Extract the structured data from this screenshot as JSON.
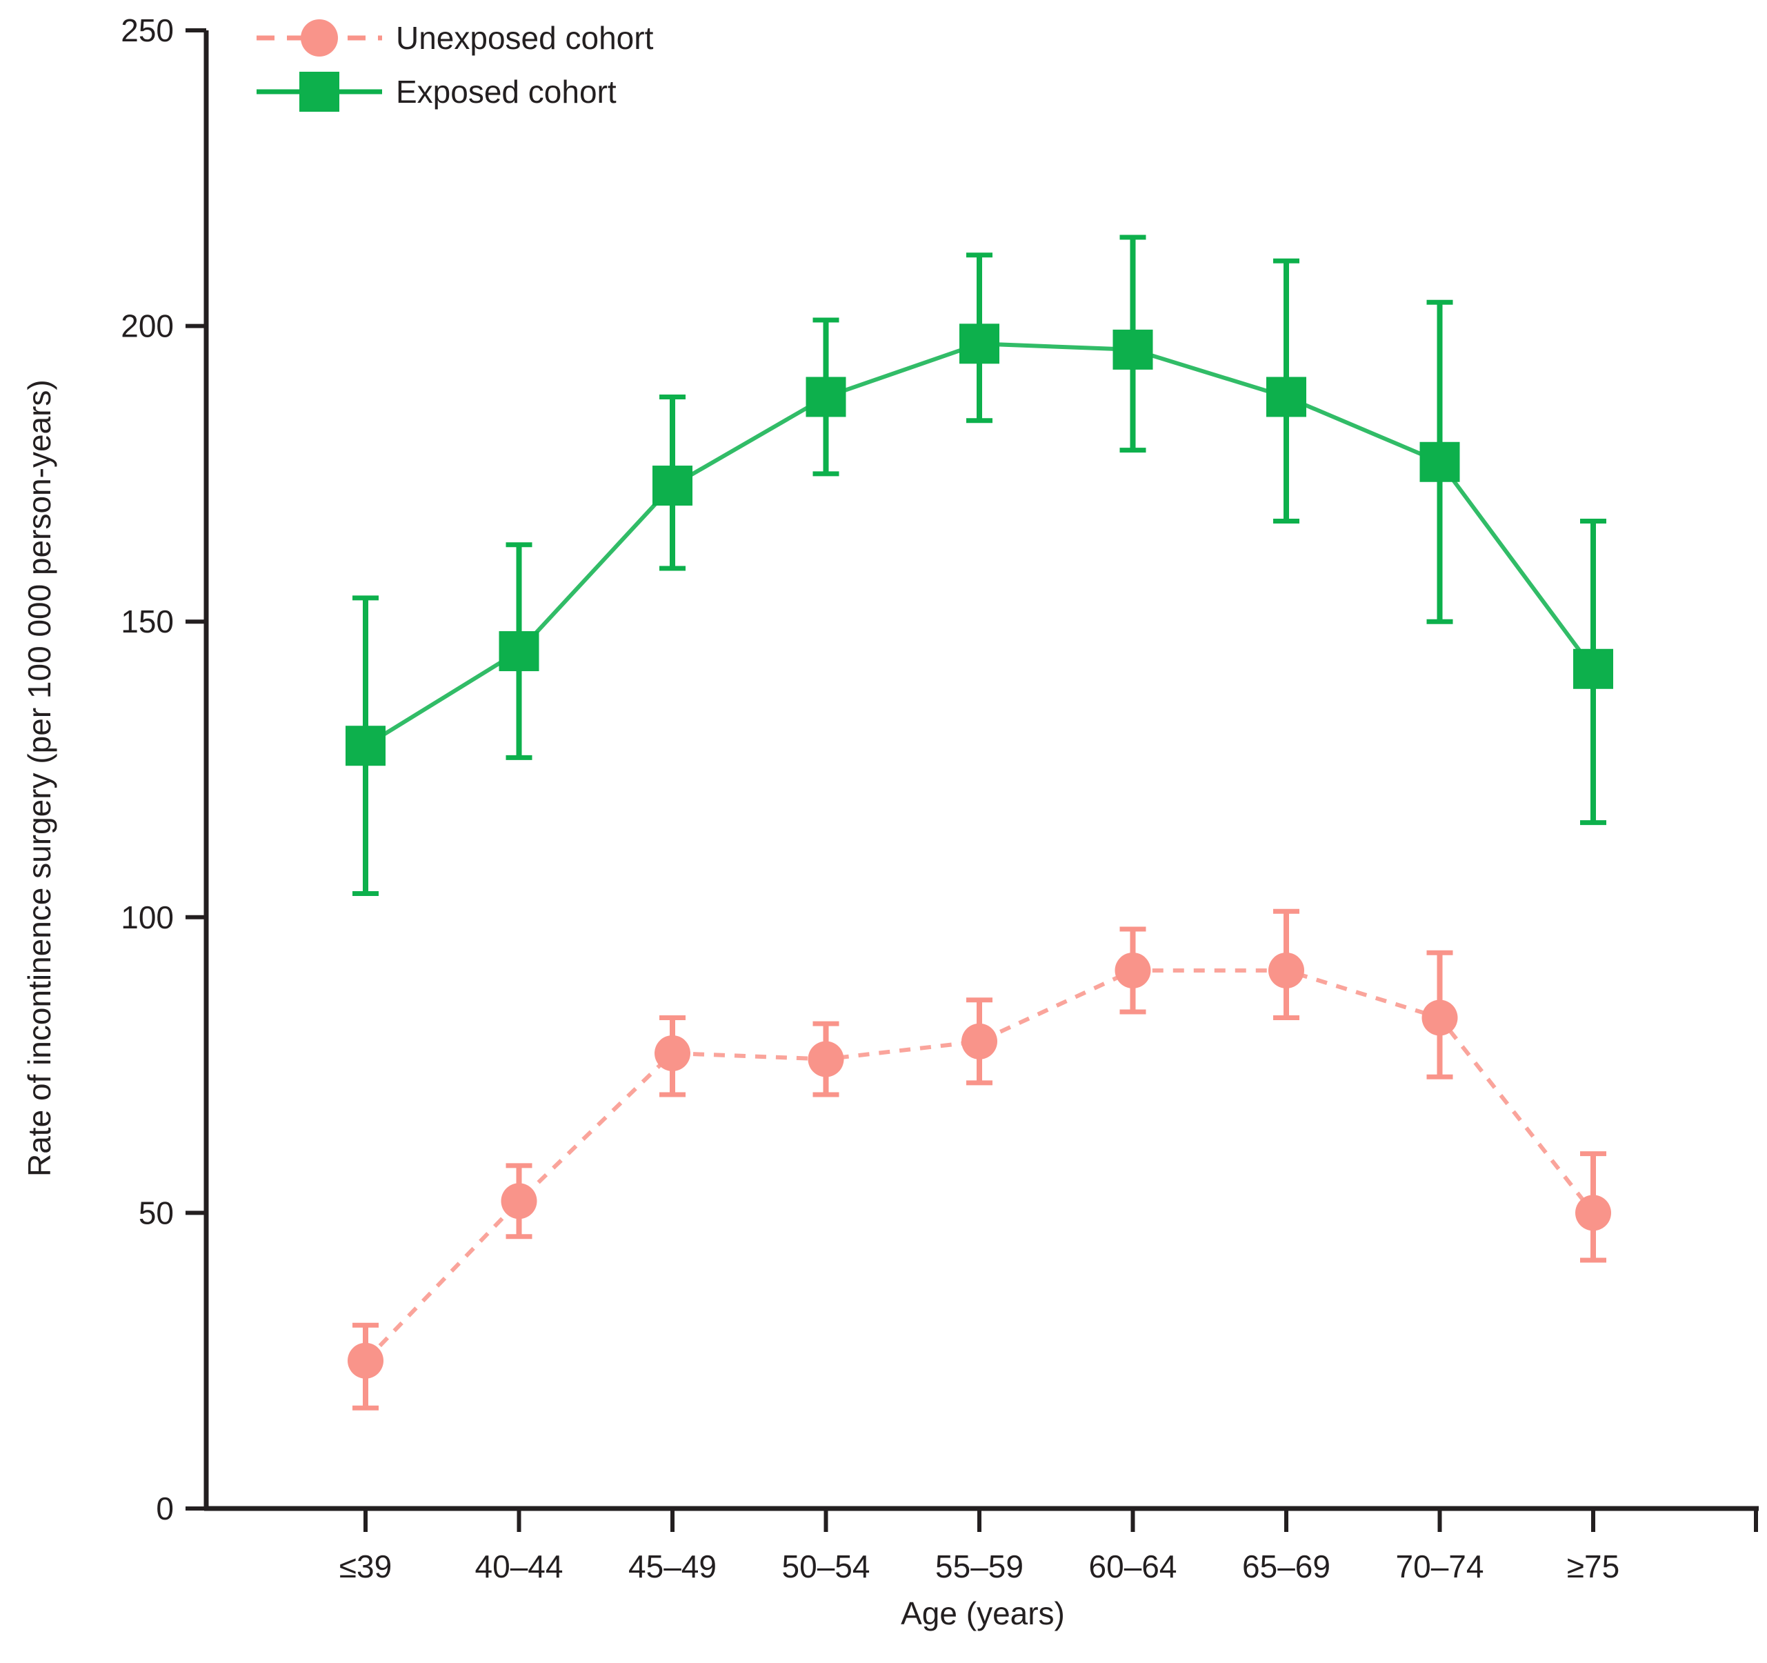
{
  "chart_data": {
    "type": "line",
    "title": "",
    "xlabel": "Age (years)",
    "ylabel": "Rate of incontinence surgery (per 100 000 person-years)",
    "categories": [
      "≤39",
      "40–44",
      "45–49",
      "50–54",
      "55–59",
      "60–64",
      "65–69",
      "70–74",
      "≥75"
    ],
    "ylim": [
      0,
      250
    ],
    "yticks": [
      0,
      50,
      100,
      150,
      200,
      250
    ],
    "grid": false,
    "legend_position": "top-left",
    "series": [
      {
        "name": "Unexposed cohort",
        "marker": "circle",
        "line_style": "dashed",
        "color": "#F9948A",
        "values": [
          25,
          52,
          77,
          76,
          79,
          91,
          91,
          83,
          50
        ],
        "ci_low": [
          17,
          46,
          70,
          70,
          72,
          84,
          83,
          73,
          42
        ],
        "ci_high": [
          31,
          58,
          83,
          82,
          86,
          98,
          101,
          94,
          60
        ]
      },
      {
        "name": "Exposed cohort",
        "marker": "square",
        "line_style": "solid",
        "color": "#0DB04C",
        "values": [
          129,
          145,
          173,
          188,
          197,
          196,
          188,
          177,
          142
        ],
        "ci_low": [
          104,
          127,
          159,
          175,
          184,
          179,
          167,
          150,
          116
        ],
        "ci_high": [
          154,
          163,
          188,
          201,
          212,
          215,
          211,
          204,
          167
        ]
      }
    ]
  },
  "colors": {
    "axis": "#231F20",
    "background": "#FFFFFF",
    "unexposed": "#F9948A",
    "exposed": "#0DB04C"
  }
}
